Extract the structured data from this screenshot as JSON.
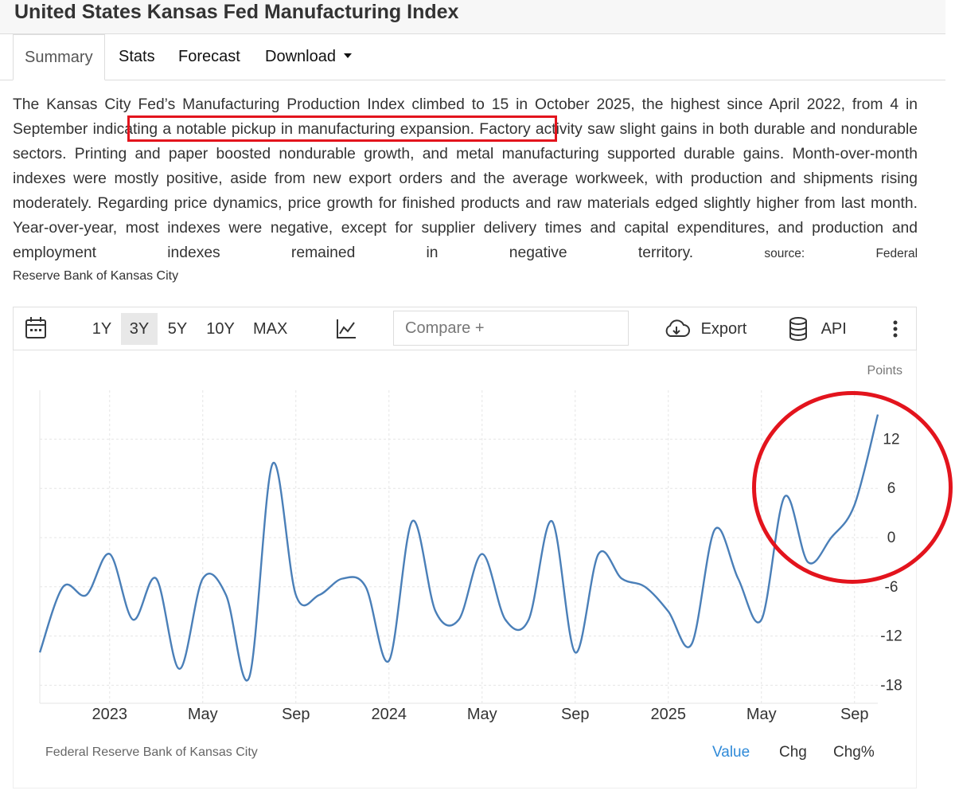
{
  "page": {
    "title": "United States Kansas Fed Manufacturing Index",
    "tabs": [
      "Summary",
      "Stats",
      "Forecast",
      "Download"
    ],
    "description": "The Kansas City Fed’s Manufacturing Production Index climbed to 15 in October 2025, the highest since April 2022, from 4 in September",
    "highlighted_phrase": "indicating a notable pickup in manufacturing expansion",
    "description_rest": "Factory activity saw slight gains in both durable and nondurable sectors. Printing and paper boosted nondurable growth, and metal manufacturing supported durable gains. Month-over-month indexes were mostly positive, aside from new export orders and the average workweek, with production and shipments rising moderately. Regarding price dynamics, price growth for finished products and raw materials edged slightly higher from last month. Year-over-year, most indexes were negative, except for supplier delivery times and capital expenditures, and production and employment indexes remained in negative territory.",
    "source_label": "source:",
    "source_name": "Federal Reserve Bank of Kansas City"
  },
  "toolbar": {
    "ranges": [
      "1Y",
      "3Y",
      "5Y",
      "10Y",
      "MAX"
    ],
    "active_range": "3Y",
    "compare_placeholder": "Compare +",
    "export_label": "Export",
    "api_label": "API"
  },
  "chart_footer": {
    "source": "Federal Reserve Bank of Kansas City",
    "tabs": [
      "Value",
      "Chg",
      "Chg%"
    ],
    "active_tab": "Value"
  },
  "colors": {
    "line": "#4a7fb8",
    "accent": "#2f8ad8",
    "annotation": "#e3141d"
  },
  "chart_data": {
    "type": "line",
    "unit_label": "Points",
    "y_ticks": [
      12,
      6,
      0,
      -6,
      -12,
      -18
    ],
    "ylim": [
      -18,
      18
    ],
    "x_tick_labels": [
      "2023",
      "May",
      "Sep",
      "2024",
      "May",
      "Sep",
      "2025",
      "May",
      "Sep"
    ],
    "x_tick_dates": [
      "2023-01",
      "2023-05",
      "2023-09",
      "2024-01",
      "2024-05",
      "2024-09",
      "2025-01",
      "2025-05",
      "2025-09"
    ],
    "series": [
      {
        "x": [
          "2022-10",
          "2022-11",
          "2022-12",
          "2023-01",
          "2023-02",
          "2023-03",
          "2023-04",
          "2023-05",
          "2023-06",
          "2023-07",
          "2023-08",
          "2023-09",
          "2023-10",
          "2023-11",
          "2023-12",
          "2024-01",
          "2024-02",
          "2024-03",
          "2024-04",
          "2024-05",
          "2024-06",
          "2024-07",
          "2024-08",
          "2024-09",
          "2024-10",
          "2024-11",
          "2024-12",
          "2025-01",
          "2025-02",
          "2025-03",
          "2025-04",
          "2025-05",
          "2025-06",
          "2025-07",
          "2025-08",
          "2025-09",
          "2025-10"
        ],
        "values": [
          -14,
          -6,
          -7,
          -2,
          -10,
          -5,
          -16,
          -5,
          -7,
          -17,
          9,
          -7,
          -7,
          -5,
          -6,
          -15,
          2,
          -9,
          -10,
          -2,
          -10,
          -10,
          2,
          -14,
          -2,
          -5,
          -6,
          -9,
          -13,
          1,
          -5,
          -10,
          5,
          -3,
          0,
          4,
          15
        ]
      }
    ]
  }
}
